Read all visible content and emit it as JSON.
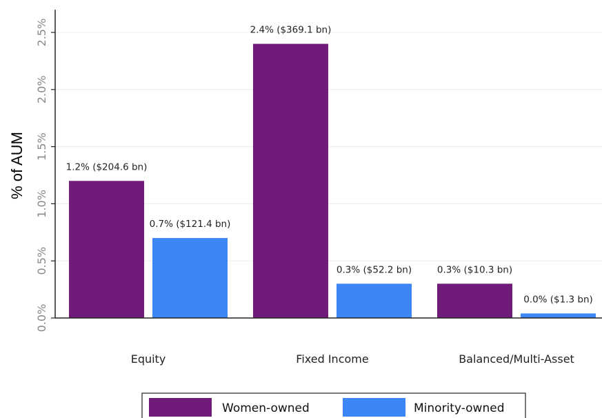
{
  "chart_data": {
    "type": "bar",
    "ylabel": "% of AUM",
    "xlabel": "",
    "ylim": [
      0,
      2.5
    ],
    "yticks": [
      0,
      0.5,
      1.0,
      1.5,
      2.0,
      2.5
    ],
    "ytick_labels": [
      "0.0%",
      "0.5%",
      "1.0%",
      "1.5%",
      "2.0%",
      "2.5%"
    ],
    "grid": true,
    "legend_position": "bottom",
    "categories": [
      "Equity",
      "Fixed Income",
      "Balanced/Multi-Asset"
    ],
    "series": [
      {
        "name": "Women-owned",
        "color": "#701a79",
        "values": [
          1.2,
          2.4,
          0.3
        ],
        "data_labels": [
          "1.2% ($204.6 bn)",
          "2.4% ($369.1 bn)",
          "0.3% ($10.3 bn)"
        ]
      },
      {
        "name": "Minority-owned",
        "color": "#3d86f5",
        "values": [
          0.7,
          0.3,
          0.04
        ],
        "data_labels": [
          "0.7% ($121.4 bn)",
          "0.3% ($52.2 bn)",
          "0.0% ($1.3 bn)"
        ]
      }
    ]
  }
}
